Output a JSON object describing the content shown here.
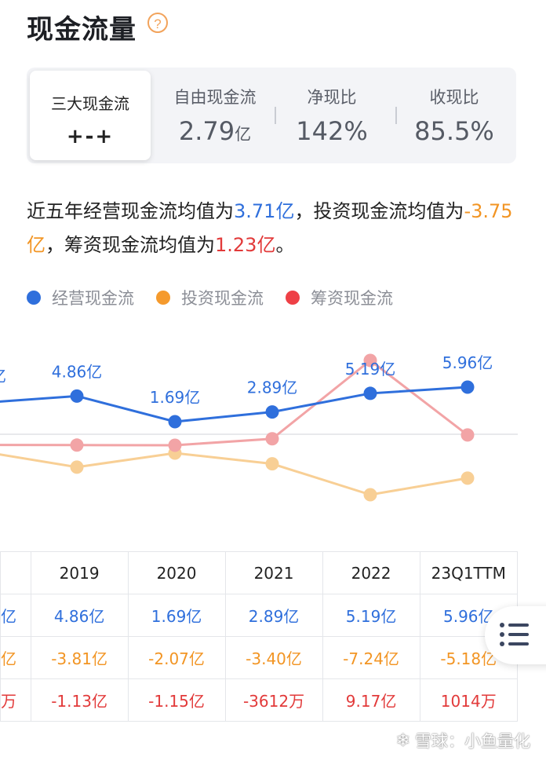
{
  "header": {
    "title": "现金流量",
    "help_icon": "?"
  },
  "metrics": {
    "card": {
      "label": "三大现金流",
      "value": "+-+"
    },
    "items": [
      {
        "label": "自由现金流",
        "value": "2.79",
        "unit": "亿"
      },
      {
        "label": "净现比",
        "value": "142%",
        "unit": ""
      },
      {
        "label": "收现比",
        "value": "85.5%",
        "unit": ""
      }
    ]
  },
  "summary": {
    "p1": "近五年经营现金流均值为",
    "v1": "3.71亿",
    "p2": "，投资现金流均值为",
    "v2": "-3.75亿",
    "p3": "，筹资现金流均值为",
    "v3": "1.23亿",
    "p4": "。"
  },
  "legend": [
    {
      "name": "经营现金流",
      "color": "#2f6fdc"
    },
    {
      "name": "投资现金流",
      "color": "#f59a2d"
    },
    {
      "name": "筹资现金流",
      "color": "#ee4046"
    }
  ],
  "chart_data": {
    "type": "line",
    "categories": [
      "2019",
      "2020",
      "2021",
      "2022",
      "23Q1TTM"
    ],
    "series": [
      {
        "name": "经营现金流",
        "unit": "亿",
        "values": [
          4.86,
          1.69,
          2.89,
          5.19,
          5.96
        ],
        "labels": [
          "4.86亿",
          "1.69亿",
          "2.89亿",
          "5.19亿",
          "5.96亿"
        ],
        "color": "#2f6fdc"
      },
      {
        "name": "投资现金流",
        "unit": "亿",
        "values": [
          -3.81,
          -2.07,
          -3.4,
          -7.24,
          -5.18
        ],
        "color": "#f8cf95"
      },
      {
        "name": "筹资现金流",
        "unit": "亿",
        "values": [
          -1.13,
          -1.15,
          -0.3612,
          9.17,
          0.1014
        ],
        "color": "#f2a4a6"
      }
    ],
    "partial_left_label": "亿",
    "grid": false
  },
  "table": {
    "headers": [
      "2019",
      "2020",
      "2021",
      "2022",
      "23Q1TTM"
    ],
    "rows": [
      {
        "class": "blue",
        "partial": "亿",
        "cells": [
          "4.86亿",
          "1.69亿",
          "2.89亿",
          "5.19亿",
          "5.96亿"
        ]
      },
      {
        "class": "orange",
        "partial": "亿",
        "cells": [
          "-3.81亿",
          "-2.07亿",
          "-3.40亿",
          "-7.24亿",
          "-5.18亿"
        ]
      },
      {
        "class": "red",
        "partial": "万",
        "cells": [
          "-1.13亿",
          "-1.15亿",
          "-3612万",
          "9.17亿",
          "1014万"
        ]
      }
    ]
  },
  "floating_button": {
    "icon": "list-menu-icon"
  },
  "watermark": {
    "logo": "❄",
    "text": "雪球：小鱼量化"
  }
}
